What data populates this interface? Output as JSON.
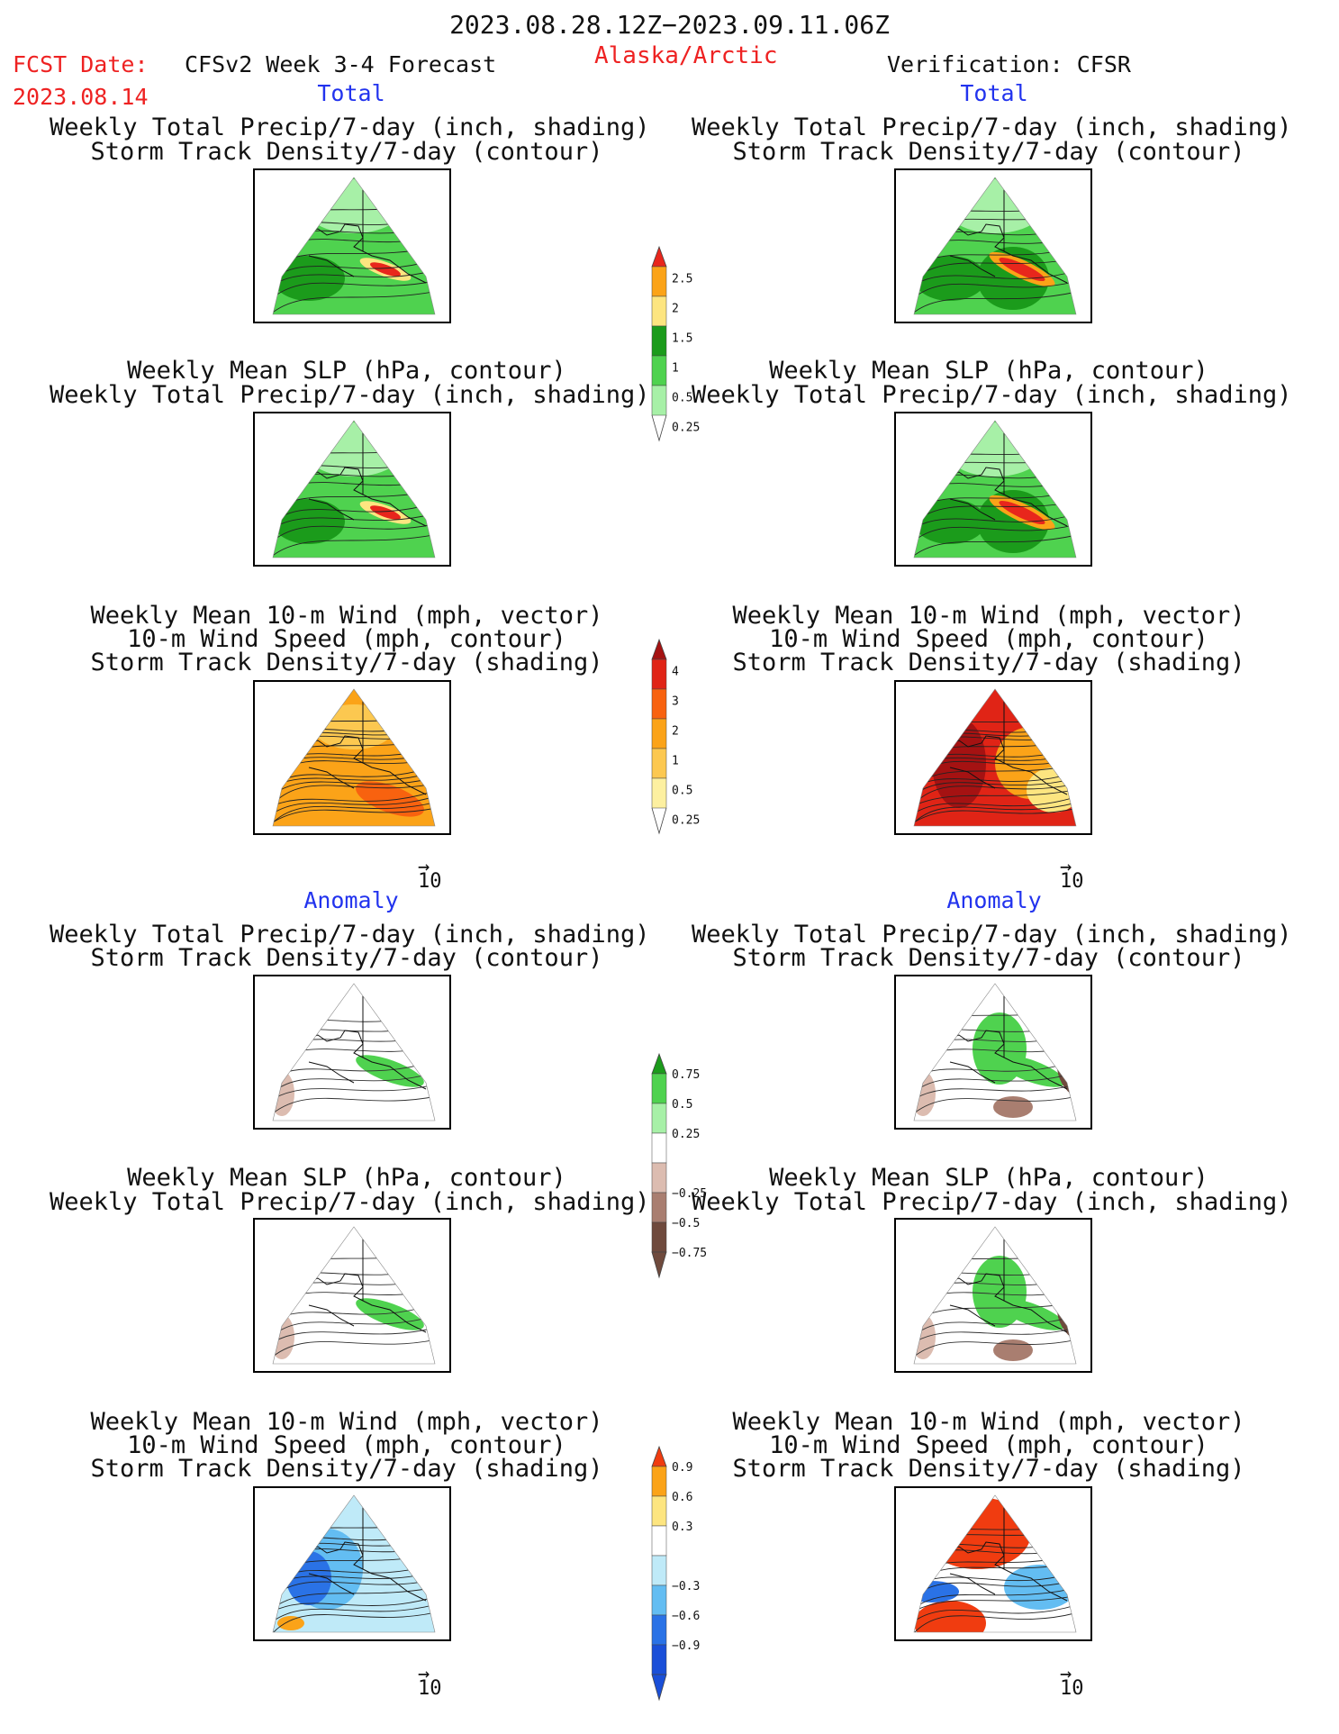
{
  "header": {
    "period": "2023.08.28.12Z−2023.09.11.06Z",
    "fcst_label": "FCST Date:",
    "fcst_date": "2023.08.14",
    "model": "CFSv2 Week 3-4 Forecast",
    "region": "Alaska/Arctic",
    "verification": "Verification: CFSR"
  },
  "sections": {
    "total": "Total",
    "anomaly": "Anomaly"
  },
  "captions": {
    "precip_storm": [
      "Weekly Total Precip/7-day (inch, shading)",
      "Storm Track Density/7-day (contour)"
    ],
    "slp_precip": [
      "Weekly Mean SLP (hPa, contour)",
      "Weekly Total Precip/7-day (inch, shading)"
    ],
    "wind_storm": [
      "Weekly Mean 10-m Wind (mph, vector)",
      "10-m Wind Speed (mph, contour)",
      "Storm Track Density/7-day (shading)"
    ]
  },
  "vector_ref": "10",
  "chart_data": [
    {
      "type": "colorbar",
      "ticks": [
        "2.5",
        "2",
        "1.5",
        "1",
        "0.5",
        "0.25"
      ],
      "colors": [
        "#e8261c",
        "#fba318",
        "#fde580",
        "#1b9b1b",
        "#4fd24f",
        "#a7f0a7"
      ]
    },
    {
      "type": "colorbar",
      "ticks": [
        "4",
        "3",
        "2",
        "1",
        "0.5",
        "0.25"
      ],
      "colors": [
        "#a51212",
        "#e02416",
        "#f8620f",
        "#fba318",
        "#fcc850",
        "#fdf0a0"
      ]
    },
    {
      "type": "colorbar",
      "ticks": [
        "0.75",
        "0.5",
        "0.25",
        "−0.25",
        "−0.5",
        "−0.75"
      ],
      "colors": [
        "#1b9b1b",
        "#4fd24f",
        "#a7f0a7",
        "#ffffff",
        "#dcbcb0",
        "#a97e70",
        "#6f4a3d"
      ]
    },
    {
      "type": "colorbar",
      "ticks": [
        "0.9",
        "0.6",
        "0.3",
        "−0.3",
        "−0.6",
        "−0.9"
      ],
      "colors": [
        "#f03c10",
        "#fba318",
        "#fde580",
        "#ffffff",
        "#bfeaf8",
        "#63bdf2",
        "#2a72e6",
        "#1a4fd8"
      ]
    }
  ],
  "colors": {
    "red_text": "#ee2222",
    "blue_text": "#2233ee"
  }
}
